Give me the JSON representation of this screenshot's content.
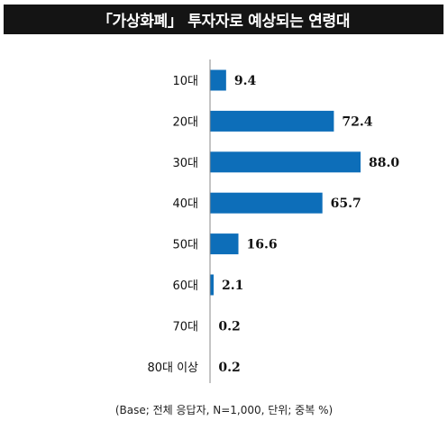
{
  "title": "「가상화폐」 투자자로 예상되는 연령대",
  "footnote": "(Base; 전체 응답자, N=1,000, 단위; 중복 %)",
  "colors": {
    "bar": "#0d6eb9",
    "axis": "#8a8a8a",
    "title_bg": "#141414"
  },
  "chart_data": {
    "type": "bar",
    "orientation": "horizontal",
    "categories": [
      "10대",
      "20대",
      "30대",
      "40대",
      "50대",
      "60대",
      "70대",
      "80대 이상"
    ],
    "values": [
      9.4,
      72.4,
      88.0,
      65.7,
      16.6,
      2.1,
      0.2,
      0.2
    ],
    "value_labels": [
      "9.4",
      "72.4",
      "88.0",
      "65.7",
      "16.6",
      "2.1",
      "0.2",
      "0.2"
    ],
    "xlim": [
      0,
      100
    ],
    "grid": false,
    "legend": "none"
  }
}
